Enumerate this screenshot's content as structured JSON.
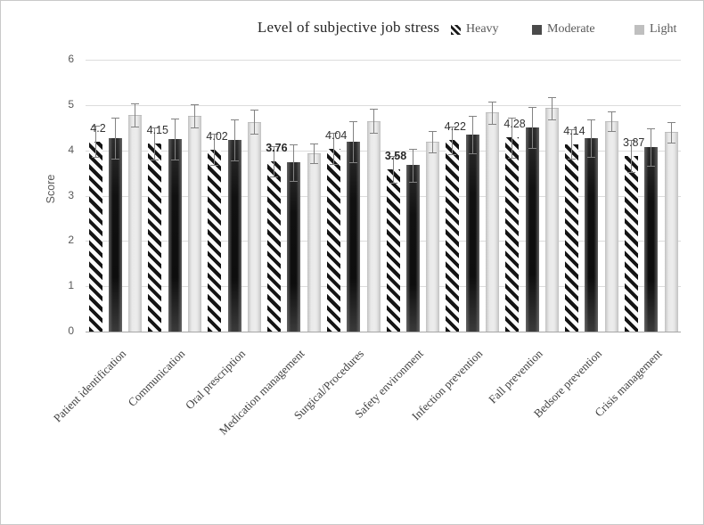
{
  "chart_data": {
    "type": "bar",
    "title": "Level of subjective job stress",
    "xlabel": "",
    "ylabel": "Score",
    "ylim": [
      0,
      6
    ],
    "yticks": [
      0,
      1,
      2,
      3,
      4,
      5,
      6
    ],
    "grid": true,
    "error_bars": true,
    "legend_position": "top-right-inline",
    "categories": [
      "Patient identification",
      "Communication",
      "Oral prescription",
      "Medication management",
      "Surgical/Procedures",
      "Safety environment",
      "Infection prevention",
      "Fall prevention",
      "Bedsore prevention",
      "Crisis management"
    ],
    "series": [
      {
        "name": "Heavy",
        "style": "diagonal-hatch",
        "color": "#141414",
        "values": [
          4.2,
          4.15,
          4.02,
          3.76,
          4.04,
          3.58,
          4.22,
          4.28,
          4.14,
          3.87
        ],
        "errors": [
          0.35,
          0.35,
          0.35,
          0.33,
          0.35,
          0.3,
          0.3,
          0.45,
          0.33,
          0.35
        ],
        "data_labels": [
          "4.2",
          "4.15",
          "4.02",
          "3.76",
          "4.04",
          "3.58",
          "4.22",
          "4.28",
          "4.14",
          "3.87"
        ],
        "bold_labels": [
          false,
          false,
          false,
          true,
          false,
          true,
          false,
          false,
          false,
          false
        ]
      },
      {
        "name": "Moderate",
        "style": "solid-dark",
        "color": "#1a1a1a",
        "values": [
          4.27,
          4.25,
          4.23,
          3.73,
          4.19,
          3.67,
          4.35,
          4.5,
          4.27,
          4.07
        ],
        "errors": [
          0.45,
          0.45,
          0.45,
          0.4,
          0.45,
          0.37,
          0.42,
          0.45,
          0.42,
          0.42
        ],
        "data_labels": null,
        "bold_labels": null
      },
      {
        "name": "Light",
        "style": "solid-light",
        "color": "#e0e0e0",
        "values": [
          4.78,
          4.76,
          4.63,
          3.94,
          4.65,
          4.19,
          4.83,
          4.93,
          4.64,
          4.4
        ],
        "errors": [
          0.25,
          0.26,
          0.26,
          0.22,
          0.26,
          0.23,
          0.25,
          0.25,
          0.22,
          0.22
        ],
        "data_labels": null,
        "bold_labels": null
      }
    ]
  }
}
